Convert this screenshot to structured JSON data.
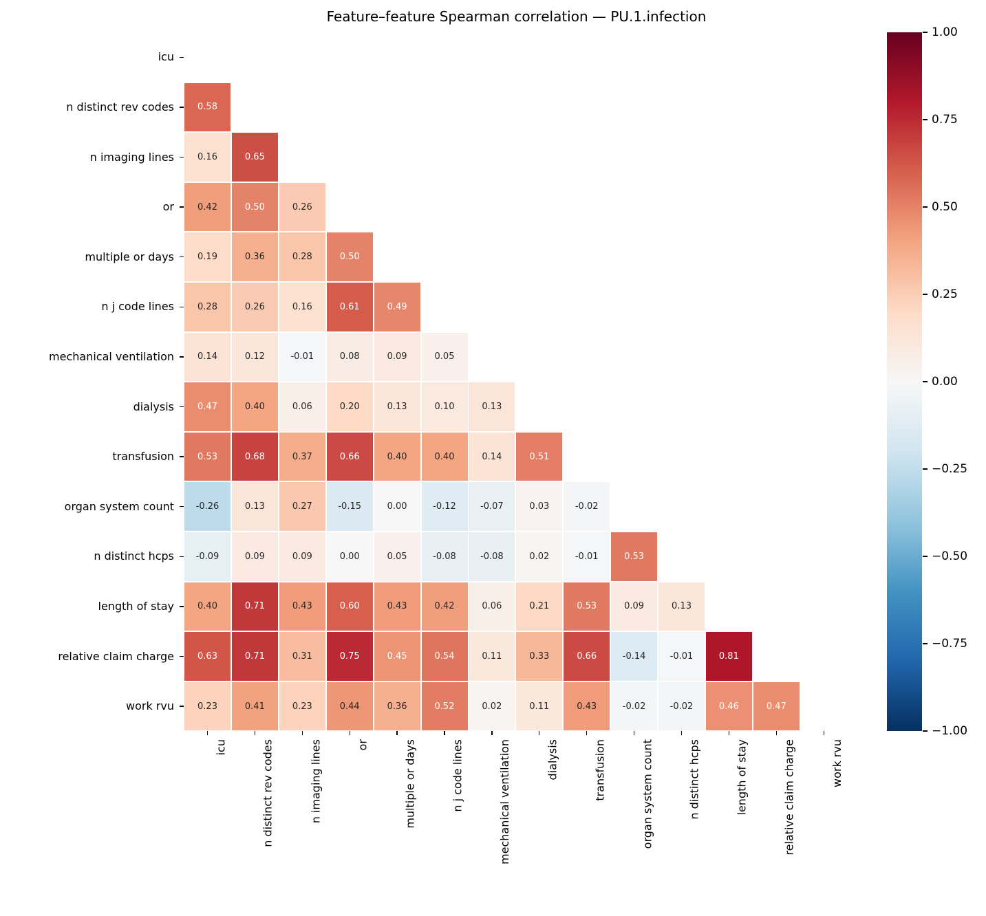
{
  "chart_data": {
    "type": "heatmap",
    "title": "Feature–feature Spearman correlation — PU.1.infection",
    "features": [
      "icu",
      "n distinct rev codes",
      "n imaging lines",
      "or",
      "multiple or days",
      "n j code lines",
      "mechanical ventilation",
      "dialysis",
      "transfusion",
      "organ system count",
      "n distinct hcps",
      "length of stay",
      "relative claim charge",
      "work rvu"
    ],
    "mask": "upper triangle and diagonal hidden",
    "lower_triangle_rows": [
      [],
      [
        0.58
      ],
      [
        0.16,
        0.65
      ],
      [
        0.42,
        0.5,
        0.26
      ],
      [
        0.19,
        0.36,
        0.28,
        0.5
      ],
      [
        0.28,
        0.26,
        0.16,
        0.61,
        0.49
      ],
      [
        0.14,
        0.12,
        -0.01,
        0.08,
        0.09,
        0.05
      ],
      [
        0.47,
        0.4,
        0.06,
        0.2,
        0.13,
        0.1,
        0.13
      ],
      [
        0.53,
        0.68,
        0.37,
        0.66,
        0.4,
        0.4,
        0.14,
        0.51
      ],
      [
        -0.26,
        0.13,
        0.27,
        -0.15,
        0.0,
        -0.12,
        -0.07,
        0.03,
        -0.02
      ],
      [
        -0.09,
        0.09,
        0.09,
        0.0,
        0.05,
        -0.08,
        -0.08,
        0.02,
        -0.01,
        0.53
      ],
      [
        0.4,
        0.71,
        0.43,
        0.6,
        0.43,
        0.42,
        0.06,
        0.21,
        0.53,
        0.09,
        0.13
      ],
      [
        0.63,
        0.71,
        0.31,
        0.75,
        0.45,
        0.54,
        0.11,
        0.33,
        0.66,
        -0.14,
        -0.01,
        0.81
      ],
      [
        0.23,
        0.41,
        0.23,
        0.44,
        0.36,
        0.52,
        0.02,
        0.11,
        0.43,
        -0.02,
        -0.02,
        0.46,
        0.47
      ]
    ],
    "value_format": "two decimals",
    "vmin": -1,
    "vmax": 1,
    "colormap": {
      "name": "RdBu_r",
      "anchors_low_to_high": [
        "#053061",
        "#2166ac",
        "#4393c3",
        "#92c5de",
        "#d1e5f0",
        "#f7f7f7",
        "#fddbc7",
        "#f4a582",
        "#d6604d",
        "#b2182b",
        "#67001f"
      ]
    },
    "annotation_colors": {
      "on_dark": "#ffffff",
      "on_light": "#262626"
    },
    "colorbar": {
      "ticks": [
        "1.00",
        "0.75",
        "0.50",
        "0.25",
        "0.00",
        "−0.25",
        "−0.50",
        "−0.75",
        "−1.00"
      ],
      "tick_values": [
        1,
        0.75,
        0.5,
        0.25,
        0,
        -0.25,
        -0.5,
        -0.75,
        -1
      ]
    },
    "background": "#ffffff",
    "grid_line_color": "#ffffff",
    "legend_position": "right colorbar"
  }
}
